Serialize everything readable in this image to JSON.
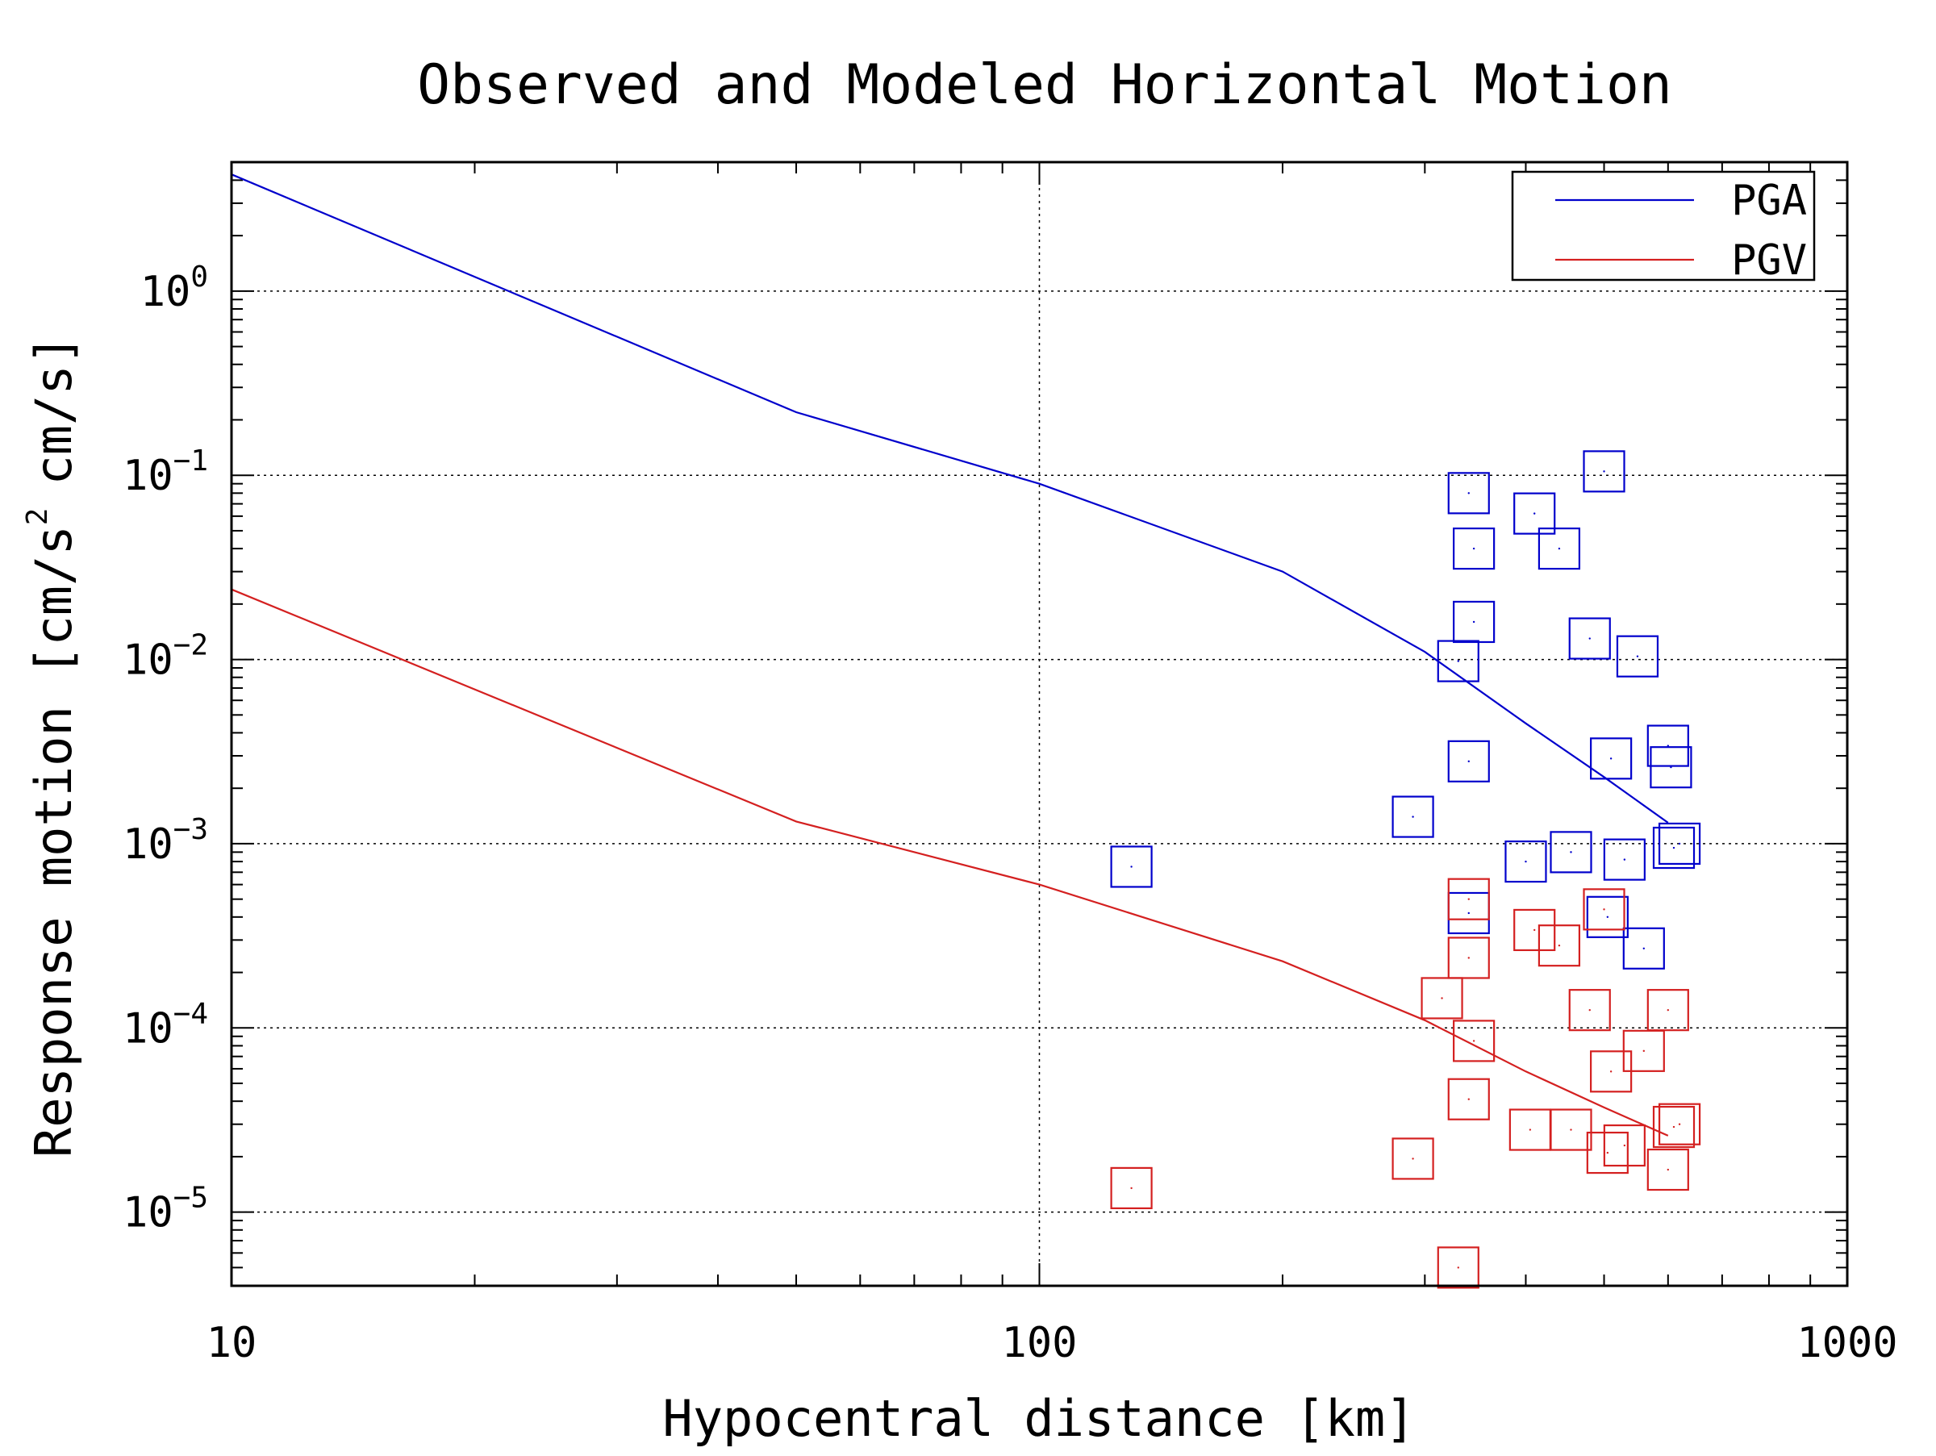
{
  "chart_data": {
    "type": "scatter",
    "title": "Observed and Modeled Horizontal Motion",
    "xlabel": "Hypocentral distance [km]",
    "ylabel_text": "Response motion [cm/s",
    "ylabel_sup": "2",
    "ylabel_unit": "cm/s]",
    "xscale": "log",
    "yscale": "log",
    "xlim": [
      10,
      1000
    ],
    "ylim_log10": [
      -5.4,
      0.7
    ],
    "grid": true,
    "legend_position": "top-right",
    "x_ticks": [
      {
        "value": 10,
        "label": "10"
      },
      {
        "value": 100,
        "label": "100"
      },
      {
        "value": 1000,
        "label": "1000"
      }
    ],
    "y_ticks": [
      {
        "exp": 0,
        "base": "10",
        "sup": "0"
      },
      {
        "exp": -1,
        "base": "10",
        "sup": "−1"
      },
      {
        "exp": -2,
        "base": "10",
        "sup": "−2"
      },
      {
        "exp": -3,
        "base": "10",
        "sup": "−3"
      },
      {
        "exp": -4,
        "base": "10",
        "sup": "−4"
      },
      {
        "exp": -5,
        "base": "10",
        "sup": "−5"
      }
    ],
    "series": [
      {
        "name": "PGA",
        "color": "#0000cc",
        "model": {
          "x": [
            10,
            50,
            100,
            200,
            300,
            400,
            500,
            600
          ],
          "y": [
            4.3,
            0.22,
            0.09,
            0.03,
            0.011,
            0.0045,
            0.0023,
            0.0013
          ]
        },
        "observed": {
          "x": [
            130,
            290,
            330,
            340,
            340,
            345,
            340,
            345,
            400,
            410,
            440,
            455,
            480,
            500,
            505,
            510,
            530,
            550,
            560,
            600,
            605,
            610,
            620
          ],
          "y": [
            0.00075,
            0.0014,
            0.0098,
            0.00042,
            0.08,
            0.04,
            0.0028,
            0.016,
            0.0008,
            0.062,
            0.04,
            0.0009,
            0.013,
            0.105,
            0.0004,
            0.0029,
            0.00082,
            0.0104,
            0.00027,
            0.0034,
            0.0026,
            0.00095,
            0.001
          ]
        }
      },
      {
        "name": "PGV",
        "color": "#d42020",
        "model": {
          "x": [
            10,
            50,
            100,
            200,
            300,
            400,
            500,
            600
          ],
          "y": [
            0.024,
            0.00132,
            0.0006,
            0.00023,
            0.00011,
            5.8e-05,
            3.7e-05,
            2.6e-05
          ]
        },
        "observed": {
          "x": [
            130,
            290,
            315,
            330,
            340,
            340,
            345,
            340,
            405,
            410,
            440,
            455,
            480,
            500,
            505,
            510,
            530,
            560,
            600,
            600,
            610,
            620
          ],
          "y": [
            1.35e-05,
            1.95e-05,
            0.000145,
            5e-06,
            0.00024,
            4.1e-05,
            8.5e-05,
            0.0005,
            2.8e-05,
            0.00034,
            0.00028,
            2.8e-05,
            0.000125,
            0.00044,
            2.1e-05,
            5.8e-05,
            2.3e-05,
            7.5e-05,
            0.000125,
            1.7e-05,
            2.9e-05,
            3e-05
          ]
        }
      }
    ]
  }
}
